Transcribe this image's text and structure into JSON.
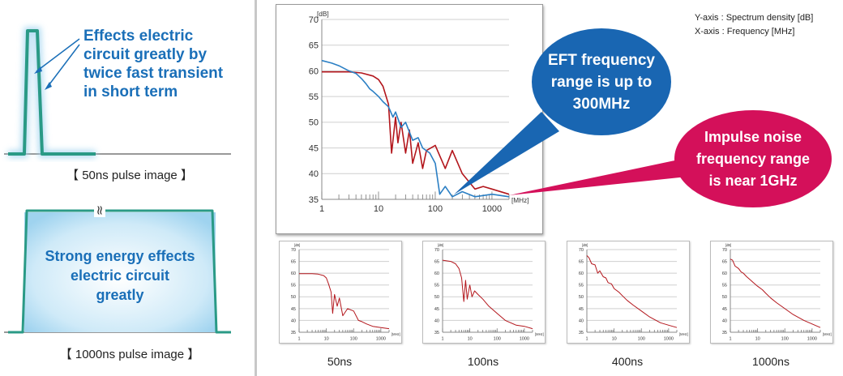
{
  "colors": {
    "blue_text": "#1a6fb8",
    "green_pulse": "#2a9a86",
    "red_series": "#b3161c",
    "blue_series": "#2b7fc4",
    "bubble_blue": "#1966b2",
    "bubble_red": "#d4105a"
  },
  "left": {
    "pulse50_caption": "【 50ns pulse image 】",
    "pulse50_effect": [
      "Effects electric",
      "circuit greatly by",
      "twice fast transient",
      "in short term"
    ],
    "break_mark": "≈",
    "pulse1000_effect": [
      "Strong energy effects",
      "electric circuit",
      "greatly"
    ],
    "pulse1000_caption": "【 1000ns pulse image 】"
  },
  "axis_note": [
    "Y-axis : Spectrum density [dB]",
    "X-axis : Frequency [MHz]"
  ],
  "bubbles": {
    "eft": [
      "EFT frequency",
      "range is up to",
      "300MHz"
    ],
    "impulse": [
      "Impulse noise",
      "frequency range",
      "is near 1GHz"
    ]
  },
  "small_captions": [
    "50ns",
    "100ns",
    "400ns",
    "1000ns"
  ],
  "chart_data": [
    {
      "type": "line",
      "ylabel": "[dB]",
      "xunit": "[MHz]",
      "xscale": "log",
      "xlim": [
        1,
        2000
      ],
      "ylim": [
        35,
        70
      ],
      "yticks": [
        35,
        40,
        45,
        50,
        55,
        60,
        65,
        70
      ],
      "xticks": [
        "1",
        "10",
        "100",
        "1000"
      ],
      "grid": true,
      "series": [
        {
          "color": "#b3161c",
          "x": [
            1,
            3,
            5,
            8,
            10,
            12,
            15,
            17,
            20,
            22,
            25,
            30,
            35,
            40,
            50,
            60,
            70,
            100,
            150,
            200,
            300,
            500,
            700,
            1000,
            2000
          ],
          "y": [
            59.8,
            59.8,
            59.6,
            59,
            58.3,
            57,
            53.5,
            44,
            51,
            46,
            50,
            44,
            48.5,
            42,
            46,
            41,
            44.5,
            45.5,
            41,
            44.5,
            40,
            37,
            37.5,
            37,
            36
          ]
        },
        {
          "color": "#2b7fc4",
          "x": [
            1,
            1.5,
            2,
            3,
            4,
            5,
            6,
            7,
            8,
            10,
            12,
            15,
            18,
            20,
            25,
            30,
            40,
            50,
            60,
            80,
            100,
            120,
            150,
            200,
            300,
            500,
            1000,
            2000
          ],
          "y": [
            62,
            61.5,
            61,
            60,
            59.5,
            58.5,
            57.5,
            56.5,
            56,
            55,
            54,
            53,
            51,
            52,
            49,
            50,
            46.5,
            47,
            45,
            44,
            42,
            36,
            37.5,
            35.5,
            36.5,
            35.5,
            36,
            35.5
          ]
        }
      ]
    },
    {
      "type": "line",
      "subtitle": "50ns",
      "ylabel": "[dB]",
      "xunit": "[MHz]",
      "xscale": "log",
      "xlim": [
        1,
        2000
      ],
      "ylim": [
        35,
        70
      ],
      "yticks": [
        35,
        40,
        45,
        50,
        55,
        60,
        65,
        70
      ],
      "xticks": [
        "1",
        "10",
        "100",
        "1000"
      ],
      "series": [
        {
          "color": "#b3161c",
          "x": [
            1,
            3,
            5,
            8,
            10,
            12,
            15,
            17,
            20,
            25,
            30,
            40,
            60,
            100,
            150,
            200,
            300,
            500,
            1000,
            2000
          ],
          "y": [
            59.8,
            59.8,
            59.6,
            59,
            58,
            55.5,
            52,
            43,
            51,
            46,
            49.5,
            42,
            45,
            44,
            40,
            39.5,
            38.5,
            37.5,
            37,
            36.5
          ]
        }
      ]
    },
    {
      "type": "line",
      "subtitle": "100ns",
      "ylabel": "[dB]",
      "xunit": "[MHz]",
      "xscale": "log",
      "xlim": [
        1,
        2000
      ],
      "ylim": [
        35,
        70
      ],
      "yticks": [
        35,
        40,
        45,
        50,
        55,
        60,
        65,
        70
      ],
      "xticks": [
        "1",
        "10",
        "100",
        "1000"
      ],
      "series": [
        {
          "color": "#b3161c",
          "x": [
            1,
            2,
            3,
            4,
            5,
            6,
            7,
            8,
            10,
            12,
            15,
            20,
            30,
            50,
            100,
            200,
            500,
            1000,
            2000
          ],
          "y": [
            65.5,
            65,
            64,
            62,
            58,
            48,
            57,
            49,
            55,
            50,
            52.5,
            51,
            49,
            46,
            43,
            40,
            38,
            37.5,
            36.5
          ]
        }
      ]
    },
    {
      "type": "line",
      "subtitle": "400ns",
      "ylabel": "[dB]",
      "xunit": "[MHz]",
      "xscale": "log",
      "xlim": [
        1,
        2000
      ],
      "ylim": [
        35,
        70
      ],
      "yticks": [
        35,
        40,
        45,
        50,
        55,
        60,
        65,
        70
      ],
      "xticks": [
        "1",
        "10",
        "100",
        "1000"
      ],
      "series": [
        {
          "color": "#b3161c",
          "x": [
            1,
            1.2,
            1.5,
            2,
            2.5,
            3,
            4,
            5,
            6,
            8,
            10,
            15,
            20,
            30,
            50,
            100,
            200,
            500,
            1000,
            2000
          ],
          "y": [
            67.5,
            66.5,
            64,
            63.5,
            60,
            61,
            58.5,
            58,
            56,
            55.5,
            53.5,
            52,
            50.5,
            48.5,
            46.5,
            44,
            41.5,
            39,
            38,
            37
          ]
        }
      ]
    },
    {
      "type": "line",
      "subtitle": "1000ns",
      "ylabel": "[dB]",
      "xunit": "[MHz]",
      "xscale": "log",
      "xlim": [
        1,
        2000
      ],
      "ylim": [
        35,
        70
      ],
      "yticks": [
        35,
        40,
        45,
        50,
        55,
        60,
        65,
        70
      ],
      "xticks": [
        "1",
        "10",
        "100",
        "1000"
      ],
      "series": [
        {
          "color": "#b3161c",
          "x": [
            1,
            1.2,
            1.5,
            2,
            2.5,
            3,
            4,
            5,
            7,
            10,
            15,
            20,
            30,
            50,
            100,
            200,
            500,
            1000,
            2000
          ],
          "y": [
            66,
            65.5,
            63,
            62,
            60.5,
            60,
            58.5,
            57.5,
            56,
            54.5,
            53,
            51.5,
            49.5,
            47.5,
            45,
            42.5,
            40,
            38.5,
            37
          ]
        }
      ]
    }
  ]
}
